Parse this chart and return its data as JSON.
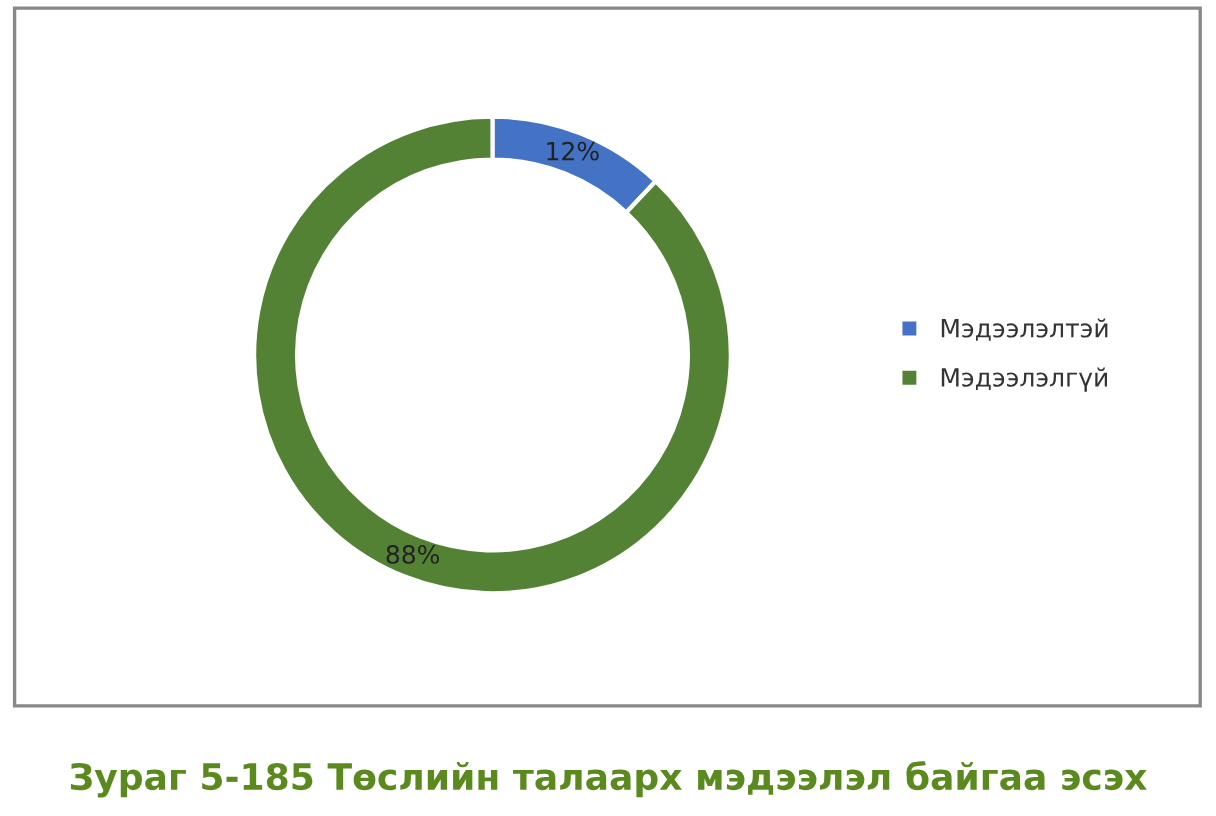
{
  "chart_data": {
    "type": "donut",
    "title": "Зураг 5-185 Төслийн талаарх мэдээлэл байгаа эсэх",
    "categories": [
      "Мэдээлэлтэй",
      "Мэдээлэлгүй"
    ],
    "values": [
      12,
      88
    ],
    "colors": [
      "#4472c4",
      "#548235"
    ],
    "value_labels": [
      "12%",
      "88%"
    ],
    "legend": "right"
  }
}
